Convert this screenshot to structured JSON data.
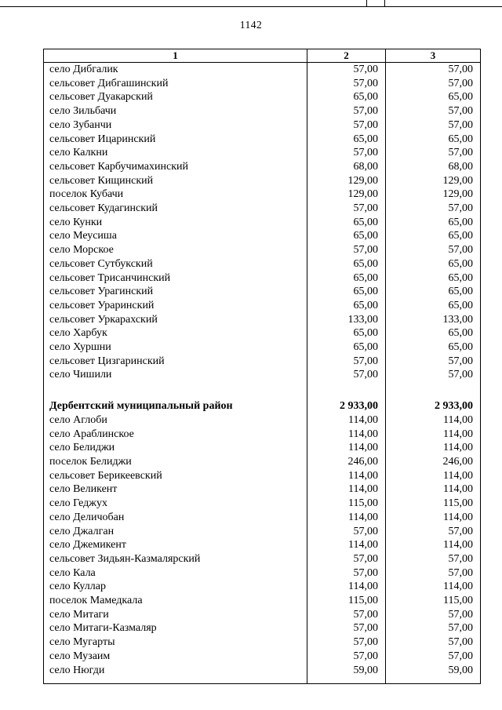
{
  "page": {
    "number": "1142"
  },
  "table": {
    "headers": [
      "1",
      "2",
      "3"
    ],
    "rows": [
      {
        "name": "село Дибгалик",
        "v2": "57,00",
        "v3": "57,00"
      },
      {
        "name": "сельсовет Дибгашинский",
        "v2": "57,00",
        "v3": "57,00"
      },
      {
        "name": "сельсовет Дуакарский",
        "v2": "65,00",
        "v3": "65,00"
      },
      {
        "name": "село Зильбачи",
        "v2": "57,00",
        "v3": "57,00"
      },
      {
        "name": "село Зубанчи",
        "v2": "57,00",
        "v3": "57,00"
      },
      {
        "name": "сельсовет Ицаринский",
        "v2": "65,00",
        "v3": "65,00"
      },
      {
        "name": "село Калкни",
        "v2": "57,00",
        "v3": "57,00"
      },
      {
        "name": "сельсовет Карбучимахинский",
        "v2": "68,00",
        "v3": "68,00"
      },
      {
        "name": "сельсовет Кищинский",
        "v2": "129,00",
        "v3": "129,00"
      },
      {
        "name": "поселок Кубачи",
        "v2": "129,00",
        "v3": "129,00"
      },
      {
        "name": "сельсовет Кудагинский",
        "v2": "57,00",
        "v3": "57,00"
      },
      {
        "name": "село Кунки",
        "v2": "65,00",
        "v3": "65,00"
      },
      {
        "name": "село Меусиша",
        "v2": "65,00",
        "v3": "65,00"
      },
      {
        "name": "село Морское",
        "v2": "57,00",
        "v3": "57,00"
      },
      {
        "name": "сельсовет Сутбукский",
        "v2": "65,00",
        "v3": "65,00"
      },
      {
        "name": "сельсовет Трисанчинский",
        "v2": "65,00",
        "v3": "65,00"
      },
      {
        "name": "сельсовет Урагинский",
        "v2": "65,00",
        "v3": "65,00"
      },
      {
        "name": "сельсовет Ураринский",
        "v2": "65,00",
        "v3": "65,00"
      },
      {
        "name": "сельсовет Уркарахский",
        "v2": "133,00",
        "v3": "133,00"
      },
      {
        "name": "село Харбук",
        "v2": "65,00",
        "v3": "65,00"
      },
      {
        "name": "село Хуршни",
        "v2": "65,00",
        "v3": "65,00"
      },
      {
        "name": "сельсовет Цизгаринский",
        "v2": "57,00",
        "v3": "57,00"
      },
      {
        "name": "село Чишили",
        "v2": "57,00",
        "v3": "57,00"
      },
      {
        "spacer": true,
        "height": 22
      },
      {
        "name": "Дербентский муниципальный район",
        "v2": "2 933,00",
        "v3": "2 933,00",
        "bold": true
      },
      {
        "name": "село Аглоби",
        "v2": "114,00",
        "v3": "114,00"
      },
      {
        "name": "село Араблинское",
        "v2": "114,00",
        "v3": "114,00"
      },
      {
        "name": "село Белиджи",
        "v2": "114,00",
        "v3": "114,00"
      },
      {
        "name": "поселок Белиджи",
        "v2": "246,00",
        "v3": "246,00"
      },
      {
        "name": "сельсовет Берикеевский",
        "v2": "114,00",
        "v3": "114,00"
      },
      {
        "name": "село Великент",
        "v2": "114,00",
        "v3": "114,00"
      },
      {
        "name": "село Геджух",
        "v2": "115,00",
        "v3": "115,00"
      },
      {
        "name": "село Деличобан",
        "v2": "114,00",
        "v3": "114,00"
      },
      {
        "name": "село Джалган",
        "v2": "57,00",
        "v3": "57,00"
      },
      {
        "name": "село Джемикент",
        "v2": "114,00",
        "v3": "114,00"
      },
      {
        "name": "сельсовет Зидьян-Казмалярский",
        "v2": "57,00",
        "v3": "57,00"
      },
      {
        "name": "село Кала",
        "v2": "57,00",
        "v3": "57,00"
      },
      {
        "name": "село Куллар",
        "v2": "114,00",
        "v3": "114,00"
      },
      {
        "name": "поселок Мамедкала",
        "v2": "115,00",
        "v3": "115,00"
      },
      {
        "name": "село Митаги",
        "v2": "57,00",
        "v3": "57,00"
      },
      {
        "name": "село Митаги-Казмаляр",
        "v2": "57,00",
        "v3": "57,00"
      },
      {
        "name": "село Мугарты",
        "v2": "57,00",
        "v3": "57,00"
      },
      {
        "name": "село Музаим",
        "v2": "57,00",
        "v3": "57,00"
      },
      {
        "name": "село Нюгди",
        "v2": "59,00",
        "v3": "59,00"
      },
      {
        "spacer": true,
        "height": 8
      }
    ]
  }
}
